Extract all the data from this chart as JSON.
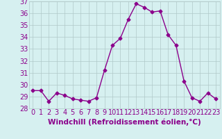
{
  "x": [
    0,
    1,
    2,
    3,
    4,
    5,
    6,
    7,
    8,
    9,
    10,
    11,
    12,
    13,
    14,
    15,
    16,
    17,
    18,
    19,
    20,
    21,
    22,
    23
  ],
  "y": [
    29.5,
    29.5,
    28.6,
    29.3,
    29.1,
    28.8,
    28.7,
    28.6,
    28.9,
    31.2,
    33.3,
    33.9,
    35.5,
    36.8,
    36.5,
    36.1,
    36.2,
    34.2,
    33.3,
    30.3,
    28.9,
    28.6,
    29.3,
    28.8
  ],
  "line_color": "#8B008B",
  "marker": "D",
  "markersize": 2.5,
  "linewidth": 1.0,
  "bg_color": "#d6f0f0",
  "grid_color": "#b0c8c8",
  "xlabel": "Windchill (Refroidissement éolien,°C)",
  "xlabel_color": "#8B008B",
  "tick_color": "#8B008B",
  "ylim": [
    28,
    37
  ],
  "xlim": [
    -0.5,
    23.5
  ],
  "yticks": [
    28,
    29,
    30,
    31,
    32,
    33,
    34,
    35,
    36,
    37
  ],
  "xticks": [
    0,
    1,
    2,
    3,
    4,
    5,
    6,
    7,
    8,
    9,
    10,
    11,
    12,
    13,
    14,
    15,
    16,
    17,
    18,
    19,
    20,
    21,
    22,
    23
  ],
  "fontsize": 7,
  "xlabel_fontsize": 7.5
}
